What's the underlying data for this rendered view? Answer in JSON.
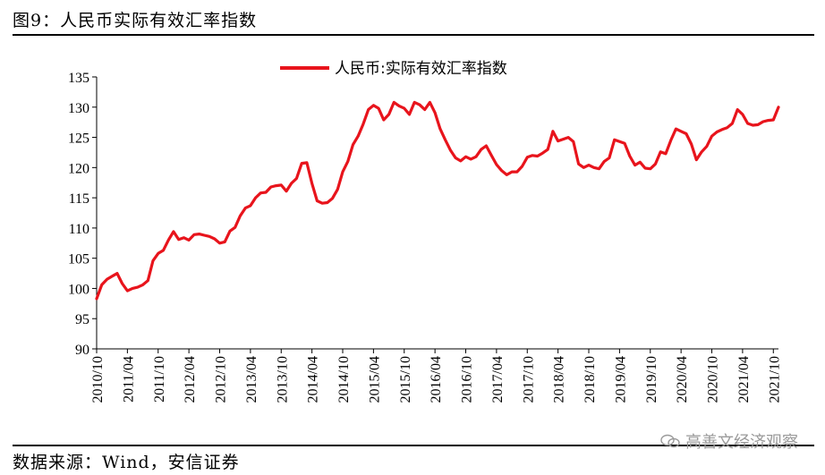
{
  "figure": {
    "title": "图9：人民币实际有效汇率指数",
    "source": "数据来源：Wind，安信证券",
    "watermark": "高善文经济观察"
  },
  "chart_data": {
    "type": "line",
    "title": "",
    "xlabel": "",
    "ylabel": "",
    "ylim": [
      90,
      135
    ],
    "yticks": [
      90,
      95,
      100,
      105,
      110,
      115,
      120,
      125,
      130,
      135
    ],
    "xticks": [
      "2010/10",
      "2011/04",
      "2011/10",
      "2012/04",
      "2012/10",
      "2013/04",
      "2013/10",
      "2014/04",
      "2014/10",
      "2015/04",
      "2015/10",
      "2016/04",
      "2016/10",
      "2017/04",
      "2017/10",
      "2018/04",
      "2018/10",
      "2019/04",
      "2019/10",
      "2020/04",
      "2020/10",
      "2021/04",
      "2021/10"
    ],
    "legend_position": "top-center",
    "grid": false,
    "series": [
      {
        "name": "人民币:实际有效汇率指数",
        "color": "#e8141c",
        "values": [
          98.3,
          100.6,
          101.5,
          102.0,
          102.5,
          100.8,
          99.6,
          100.0,
          100.2,
          100.6,
          101.3,
          104.6,
          105.8,
          106.3,
          108.0,
          109.4,
          108.1,
          108.4,
          108.0,
          108.9,
          109.0,
          108.8,
          108.6,
          108.2,
          107.5,
          107.7,
          109.5,
          110.1,
          112.0,
          113.3,
          113.7,
          115.0,
          115.8,
          115.9,
          116.8,
          117.0,
          117.1,
          116.1,
          117.4,
          118.2,
          120.7,
          120.8,
          117.4,
          114.5,
          114.1,
          114.2,
          114.9,
          116.4,
          119.3,
          121.0,
          123.8,
          125.2,
          127.2,
          129.6,
          130.3,
          129.8,
          127.9,
          128.8,
          130.8,
          130.2,
          129.8,
          128.8,
          130.8,
          130.4,
          129.6,
          130.8,
          129.1,
          126.4,
          124.6,
          122.9,
          121.6,
          121.1,
          121.8,
          121.4,
          121.8,
          123.0,
          123.6,
          122.0,
          120.5,
          119.5,
          118.8,
          119.3,
          119.3,
          120.2,
          121.7,
          122.0,
          121.9,
          122.4,
          123.0,
          126.0,
          124.4,
          124.7,
          125.0,
          124.3,
          120.6,
          120.0,
          120.4,
          120.0,
          119.8,
          121.0,
          121.6,
          124.6,
          124.3,
          124.0,
          121.9,
          120.4,
          120.9,
          119.9,
          119.8,
          120.6,
          122.6,
          122.3,
          124.5,
          126.4,
          126.0,
          125.6,
          123.9,
          121.3,
          122.6,
          123.5,
          125.2,
          125.9,
          126.3,
          126.6,
          127.3,
          129.6,
          128.8,
          127.3,
          127.0,
          127.1,
          127.6,
          127.8,
          127.9,
          130.0
        ]
      }
    ]
  }
}
